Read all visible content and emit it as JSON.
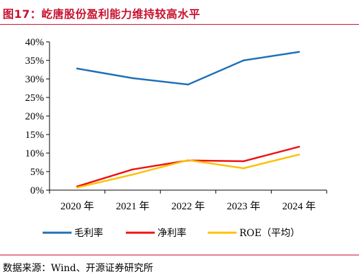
{
  "header": {
    "title": "图17：屹唐股份盈利能力维持较高水平"
  },
  "footer": {
    "source": "数据来源：Wind、开源证券研究所"
  },
  "chart_data": {
    "type": "line",
    "categories": [
      "2020 年",
      "2021 年",
      "2022 年",
      "2023 年",
      "2024 年"
    ],
    "ylim": [
      0,
      40
    ],
    "yticks": [
      "0%",
      "5%",
      "10%",
      "15%",
      "20%",
      "25%",
      "30%",
      "35%",
      "40%"
    ],
    "grid": false,
    "legend_position": "bottom",
    "series": [
      {
        "name": "毛利率",
        "color": "#1f6fb5",
        "values": [
          32.8,
          30.2,
          28.5,
          35.0,
          37.3
        ]
      },
      {
        "name": "净利率",
        "color": "#ee1111",
        "values": [
          1.0,
          5.6,
          8.0,
          7.8,
          11.7
        ]
      },
      {
        "name": "ROE（平均）",
        "color": "#ffc000",
        "values": [
          0.7,
          4.2,
          8.1,
          5.9,
          9.6
        ]
      }
    ]
  }
}
